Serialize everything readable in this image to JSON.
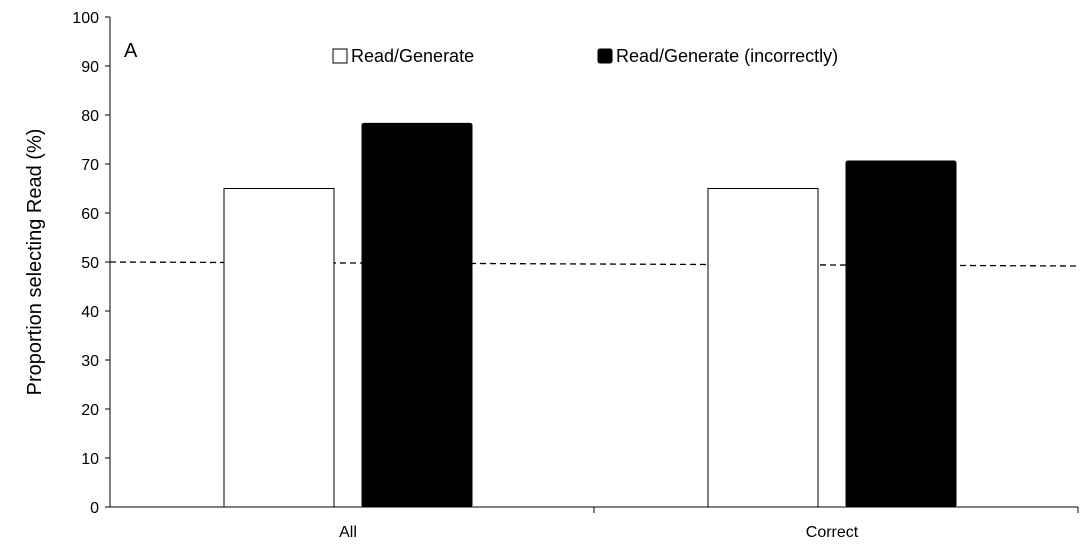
{
  "chart_data": {
    "type": "bar",
    "panel_label": "A",
    "title": "",
    "xlabel": "",
    "ylabel": "Proportion selecting Read (%)",
    "ylim": [
      0,
      100
    ],
    "yticks": [
      "0",
      "10",
      "20",
      "30",
      "40",
      "50",
      "60",
      "70",
      "80",
      "90",
      "100"
    ],
    "categories": [
      "All",
      "Correct"
    ],
    "series": [
      {
        "name": "Read/Generate",
        "values": [
          65,
          65
        ],
        "color": "#ffffff"
      },
      {
        "name": "Read/Generate (incorrectly)",
        "values": [
          78.3,
          70.6
        ],
        "color": "#000000"
      }
    ],
    "reference_line": {
      "y": 50,
      "style": "dashed"
    },
    "legend": {
      "placement": "top-center"
    },
    "grid": false
  }
}
